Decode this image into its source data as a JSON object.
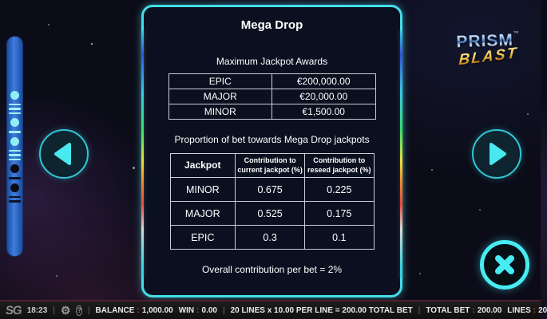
{
  "logo": {
    "title": "PRISM",
    "tm": "™",
    "subtitle": "BLAST"
  },
  "panel": {
    "title": "Mega Drop",
    "awards": {
      "heading": "Maximum Jackpot Awards",
      "rows": [
        [
          "EPIC",
          "€200,000.00"
        ],
        [
          "MAJOR",
          "€20,000.00"
        ],
        [
          "MINOR",
          "€1,500.00"
        ]
      ]
    },
    "proportion": {
      "heading": "Proportion of bet towards Mega Drop jackpots",
      "columns": [
        "Jackpot",
        "Contribution to current jackpot (%)",
        "Contribution to reseed jackpot (%)"
      ],
      "rows": [
        [
          "MINOR",
          "0.675",
          "0.225"
        ],
        [
          "MAJOR",
          "0.525",
          "0.175"
        ],
        [
          "EPIC",
          "0.3",
          "0.1"
        ]
      ]
    },
    "footnote": "Overall contribution per bet = 2%"
  },
  "sidebar": {
    "indicators": [
      {
        "shape": "dot",
        "count": 1,
        "active": true
      },
      {
        "shape": "lines",
        "count": 3,
        "active": true
      },
      {
        "shape": "dot",
        "count": 1,
        "active": true
      },
      {
        "shape": "lines",
        "count": 1,
        "active": true
      },
      {
        "shape": "dot",
        "count": 1,
        "active": true
      },
      {
        "shape": "lines",
        "count": 3,
        "active": true
      },
      {
        "shape": "dot",
        "count": 1,
        "active": false
      },
      {
        "shape": "lines",
        "count": 1,
        "active": false
      },
      {
        "shape": "dot",
        "count": 1,
        "active": false
      },
      {
        "shape": "lines",
        "count": 2,
        "active": false
      }
    ]
  },
  "icons": {
    "gear": "⚙",
    "help": "?"
  },
  "bottom_bar": {
    "brand": "SG",
    "time": "18:23",
    "separator": "|",
    "colon": ":",
    "balance_label": "BALANCE",
    "balance_value": "1,000.00",
    "win_label": "WIN",
    "win_value": "0.00",
    "bet_summary": "20 LINES x 10.00 PER LINE = 200.00 TOTAL BET",
    "total_bet_label": "TOTAL BET",
    "total_bet_value": "200.00",
    "lines_label": "LINES",
    "lines_value": "20"
  },
  "colors": {
    "accent_cyan": "#43dde8",
    "pill_blue": "#3f7de0",
    "colon_red": "#c0404e",
    "panel_bg": "#0a101f"
  }
}
